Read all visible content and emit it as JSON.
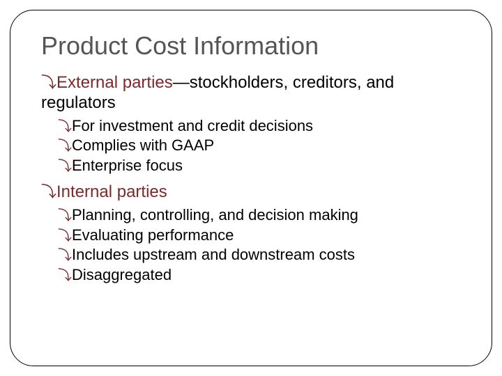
{
  "title": "Product Cost Information",
  "colors": {
    "title": "#555555",
    "accent": "#7b2a2a",
    "body": "#000000",
    "border": "#000000",
    "background": "#ffffff"
  },
  "typography": {
    "title_fontsize": 36,
    "l1_fontsize": 24,
    "l2_fontsize": 22,
    "font_family": "Arial"
  },
  "bullet_glyph": "⤵",
  "sections": [
    {
      "head": "External parties",
      "rest": "—stockholders, creditors, and",
      "cont": "regulators",
      "items": [
        "For investment and credit decisions",
        "Complies with GAAP",
        "Enterprise focus"
      ]
    },
    {
      "head": "Internal parties",
      "rest": "",
      "cont": "",
      "items": [
        "Planning, controlling, and decision making",
        "Evaluating performance",
        "Includes upstream and downstream costs",
        "Disaggregated"
      ]
    }
  ]
}
